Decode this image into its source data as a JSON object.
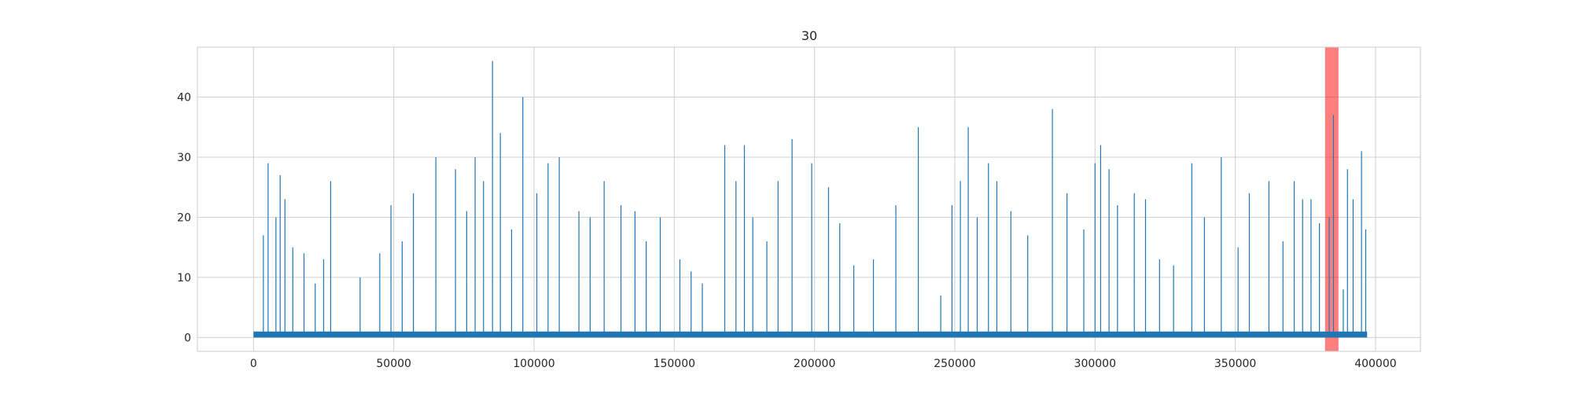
{
  "chart_data": {
    "type": "bar",
    "title": "30",
    "xlabel": "",
    "ylabel": "",
    "xlim": [
      -20000,
      416000
    ],
    "ylim": [
      -2.3,
      48.3
    ],
    "xticks": [
      0,
      50000,
      100000,
      150000,
      200000,
      250000,
      300000,
      350000,
      400000
    ],
    "xtick_labels": [
      "0",
      "50000",
      "100000",
      "150000",
      "200000",
      "250000",
      "300000",
      "350000",
      "400000"
    ],
    "yticks": [
      0,
      10,
      20,
      30,
      40
    ],
    "ytick_labels": [
      "0",
      "10",
      "20",
      "30",
      "40"
    ],
    "grid": true,
    "series_color": "#1f77b4",
    "baseline": {
      "x_start": 0,
      "x_end": 397000,
      "from": 0,
      "to": 1
    },
    "highlight_span": {
      "x_start": 382000,
      "x_end": 386800,
      "color": "#ff0000",
      "alpha": 0.5
    },
    "series": [
      {
        "x": [
          3500,
          5200,
          8000,
          9500,
          11200,
          14000,
          18000,
          22000,
          25000,
          27500,
          38000,
          45000,
          49000,
          53000,
          57000,
          65000,
          72000,
          76000,
          79000,
          82000,
          85200,
          88000,
          92000,
          96000,
          101000,
          105000,
          109000,
          116000,
          120000,
          125000,
          131000,
          136000,
          140000,
          145000,
          152000,
          156000,
          160000,
          168000,
          172000,
          175000,
          178000,
          183000,
          187000,
          192000,
          199000,
          205000,
          209000,
          214000,
          221000,
          229000,
          237000,
          245000,
          249000,
          252000,
          254800,
          258000,
          262000,
          265000,
          270000,
          276000,
          284800,
          290000,
          296000,
          300000,
          302000,
          305000,
          308000,
          314000,
          318000,
          323000,
          328000,
          334500,
          339000,
          345000,
          351000,
          355000,
          362000,
          367000,
          371000,
          374000,
          377000,
          380000,
          383500,
          385000,
          388500,
          390000,
          392000,
          395000,
          396500
        ],
        "values": [
          17,
          29,
          20,
          27,
          23,
          15,
          14,
          9,
          13,
          26,
          10,
          14,
          22,
          16,
          24,
          30,
          28,
          21,
          30,
          26,
          46,
          34,
          18,
          40,
          24,
          29,
          30,
          21,
          20,
          26,
          22,
          21,
          16,
          20,
          13,
          11,
          9,
          32,
          26,
          32,
          20,
          16,
          26,
          33,
          29,
          25,
          19,
          12,
          13,
          22,
          35,
          7,
          22,
          26,
          35,
          20,
          29,
          26,
          21,
          17,
          38,
          24,
          18,
          29,
          32,
          28,
          22,
          24,
          23,
          13,
          12,
          29,
          20,
          30,
          15,
          24,
          26,
          16,
          26,
          23,
          23,
          19,
          20,
          37,
          8,
          28,
          23,
          31,
          18
        ]
      }
    ]
  }
}
